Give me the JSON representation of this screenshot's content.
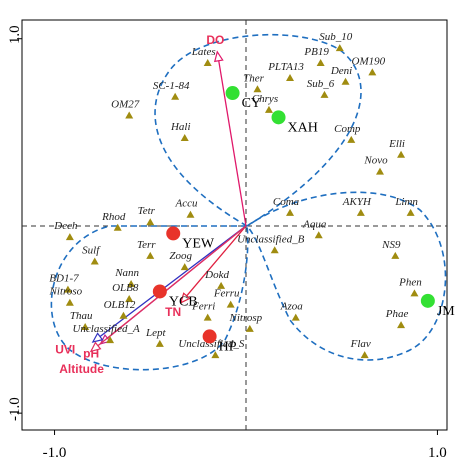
{
  "chart_data": {
    "type": "biplot",
    "xlim": [
      -1.17,
      1.05
    ],
    "ylim": [
      -1.09,
      1.1
    ],
    "xticks": [
      {
        "value": -1,
        "label": "-1.0"
      },
      {
        "value": 1,
        "label": "1.0"
      }
    ],
    "yticks": [
      {
        "value": -1,
        "label": "-1.0"
      },
      {
        "value": 1,
        "label": "1.0"
      }
    ],
    "species": {
      "color": "#a08c10",
      "labels": [
        "Sub_10",
        "PB19",
        "Lates",
        "OM190",
        "PLTA13",
        "Deni",
        "Ther",
        "Sub_6",
        "SC-1-84",
        "Chrys",
        "OM27",
        "Comp",
        "Hali",
        "Elli",
        "Novo",
        "Coma",
        "AKYH",
        "Limn",
        "Accu",
        "Tetr",
        "Rhod",
        "Dech",
        "Aqua",
        "Terr",
        "Sulf",
        "Unclassified_B",
        "NS9",
        "Zoog",
        "Nann",
        "BD1-7",
        "Phen",
        "Dokd",
        "Nitroso",
        "OLB8",
        "Ferru",
        "OLB12",
        "Ferri",
        "Azoa",
        "Thau",
        "Phae",
        "Nitrosp",
        "Unclassified_A",
        "Lept",
        "Unclassified_S",
        "Flav"
      ],
      "x": [
        0.49,
        0.39,
        -0.2,
        0.66,
        0.23,
        0.52,
        0.06,
        0.41,
        -0.37,
        0.12,
        -0.61,
        0.55,
        -0.32,
        0.81,
        0.7,
        0.23,
        0.6,
        0.86,
        -0.29,
        -0.5,
        -0.67,
        -0.92,
        0.38,
        -0.5,
        -0.79,
        0.15,
        0.78,
        -0.32,
        -0.6,
        -0.93,
        0.88,
        -0.13,
        -0.92,
        -0.61,
        -0.08,
        -0.64,
        -0.2,
        0.26,
        -0.84,
        0.81,
        0.02,
        -0.71,
        -0.45,
        -0.16,
        0.62
      ],
      "y": [
        0.95,
        0.87,
        0.87,
        0.82,
        0.79,
        0.77,
        0.73,
        0.7,
        0.69,
        0.62,
        0.59,
        0.46,
        0.47,
        0.38,
        0.29,
        0.07,
        0.07,
        0.07,
        0.06,
        0.02,
        -0.01,
        -0.06,
        -0.05,
        -0.16,
        -0.19,
        -0.13,
        -0.16,
        -0.22,
        -0.31,
        -0.34,
        -0.36,
        -0.32,
        -0.41,
        -0.39,
        -0.42,
        -0.48,
        -0.49,
        -0.49,
        -0.54,
        -0.53,
        -0.55,
        -0.61,
        -0.63,
        -0.69,
        -0.69
      ]
    },
    "sites": {
      "labels": [
        "CY",
        "XAH",
        "JM",
        "YEW",
        "YCB",
        "HP"
      ],
      "x": [
        -0.07,
        0.17,
        0.95,
        -0.38,
        -0.45,
        -0.19
      ],
      "y": [
        0.71,
        0.58,
        -0.4,
        -0.04,
        -0.35,
        -0.59
      ],
      "colors": [
        "#33e033",
        "#33e033",
        "#33e033",
        "#e8332a",
        "#e8332a",
        "#e8332a"
      ]
    },
    "arrows": {
      "labels": [
        "DO",
        "TN",
        "pH",
        "UVI",
        "Altitude"
      ],
      "x": [
        -0.15,
        -0.34,
        -0.76,
        -0.8,
        -0.81
      ],
      "y": [
        0.93,
        -0.41,
        -0.63,
        -0.62,
        -0.67
      ],
      "colors": [
        "#e0186a",
        "#e02040",
        "#c0208a",
        "#3030c0",
        "#e03060"
      ]
    }
  }
}
